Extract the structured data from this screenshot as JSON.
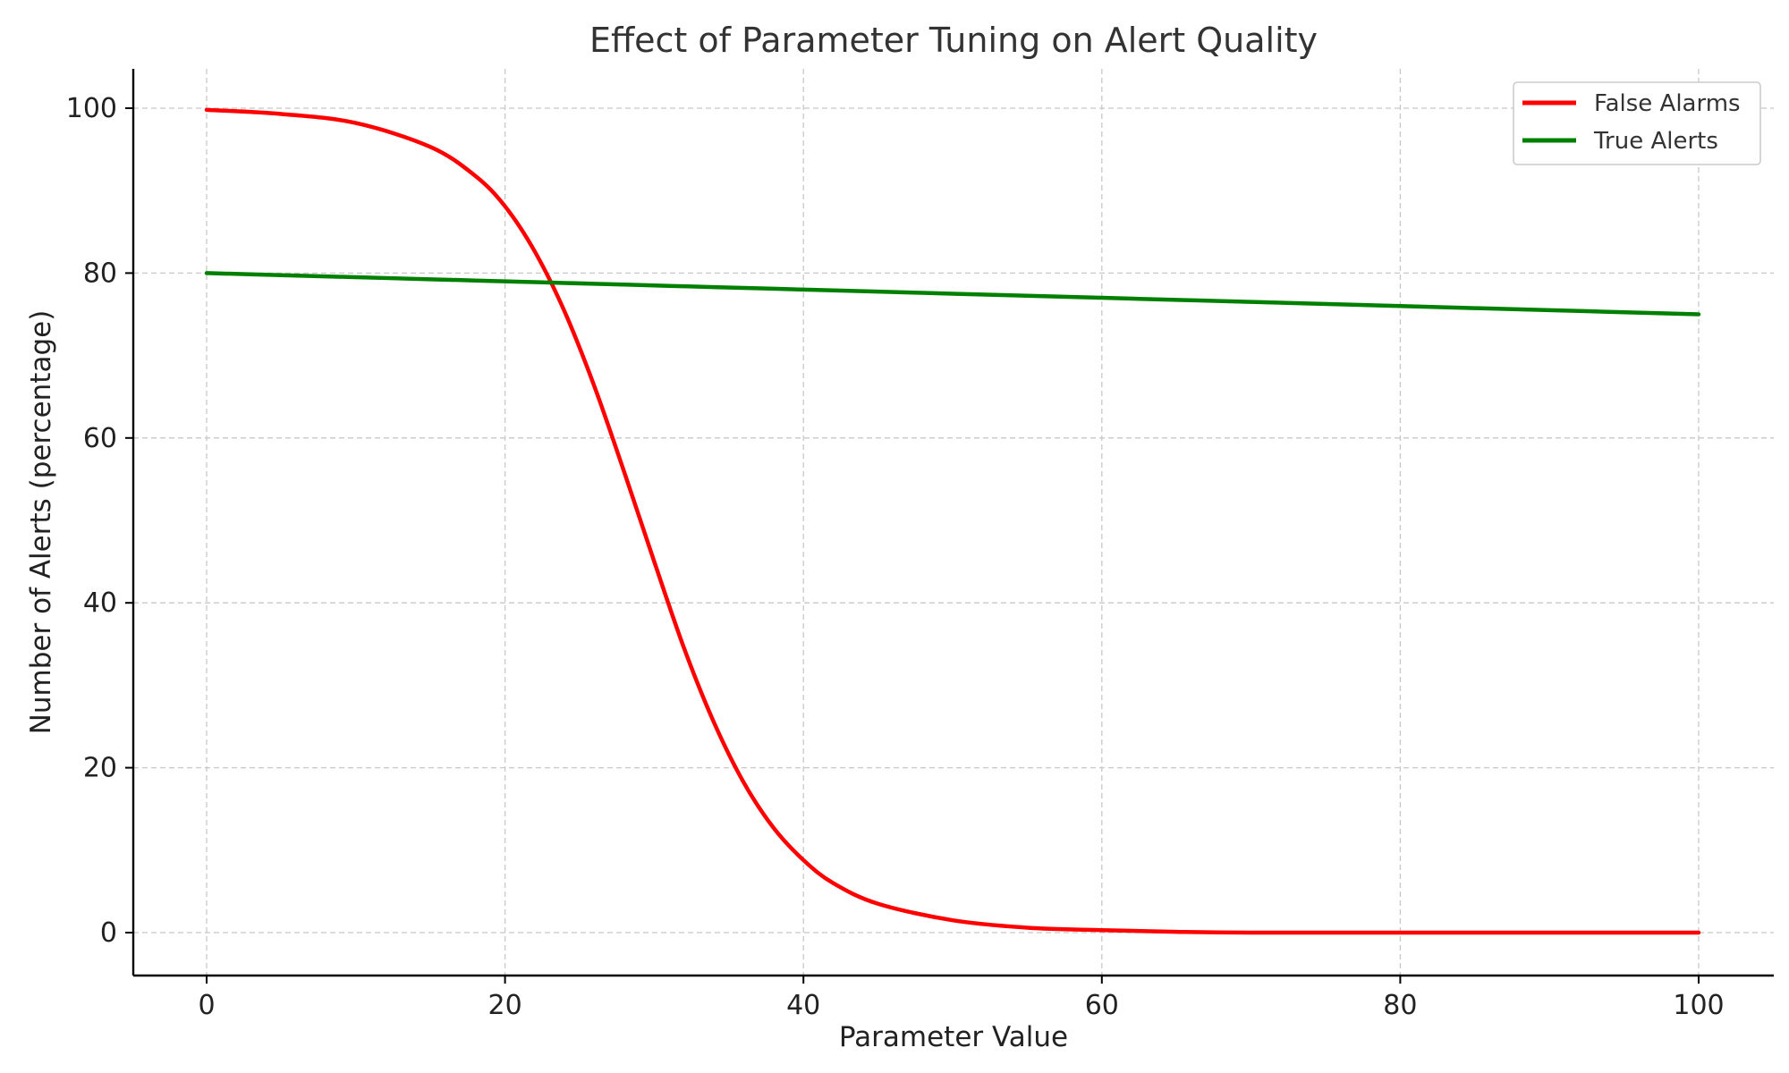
{
  "chart_data": {
    "type": "line",
    "title": "Effect of Parameter Tuning on Alert Quality",
    "xlabel": "Parameter Value",
    "ylabel": "Number of Alerts (percentage)",
    "xlim": [
      -5,
      105
    ],
    "ylim": [
      -5,
      105
    ],
    "xticks": [
      0,
      20,
      40,
      60,
      80,
      100
    ],
    "yticks": [
      0,
      20,
      40,
      60,
      80,
      100
    ],
    "grid": true,
    "legend_position": "top-right",
    "x": [
      0,
      5,
      10,
      15,
      18,
      20,
      22,
      24,
      26,
      28,
      30,
      32,
      34,
      36,
      38,
      40,
      42,
      45,
      50,
      55,
      60,
      65,
      70,
      80,
      90,
      100
    ],
    "series": [
      {
        "name": "False Alarms",
        "color": "#ff0000",
        "values": [
          99.8,
          99.3,
          98.2,
          95.3,
          91.8,
          88.1,
          82.6,
          75.3,
          66.2,
          55.8,
          45.0,
          34.5,
          25.5,
          18.2,
          12.7,
          8.8,
          6.0,
          3.5,
          1.5,
          0.6,
          0.3,
          0.1,
          0.0,
          0.0,
          0.0,
          0.0
        ]
      },
      {
        "name": "True Alerts",
        "color": "#008000",
        "values": [
          80.0,
          79.75,
          79.5,
          79.25,
          79.1,
          79.0,
          78.9,
          78.8,
          78.7,
          78.6,
          78.5,
          78.4,
          78.3,
          78.2,
          78.1,
          78.0,
          77.9,
          77.75,
          77.5,
          77.25,
          77.0,
          76.75,
          76.5,
          76.0,
          75.5,
          75.0
        ]
      }
    ]
  }
}
